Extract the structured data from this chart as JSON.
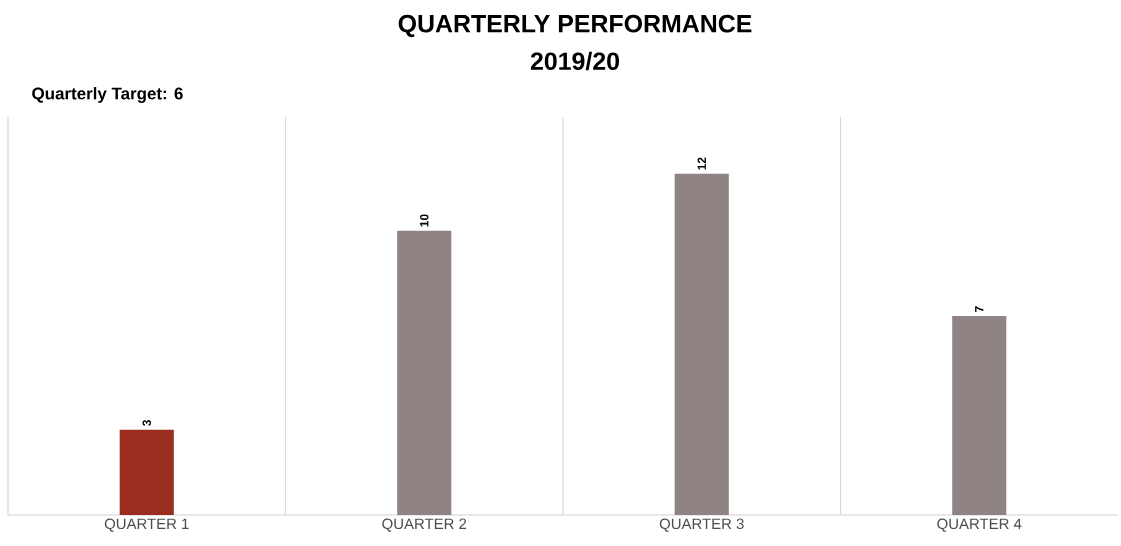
{
  "chart_data": {
    "type": "bar",
    "title": "QUARTERLY PERFORMANCE",
    "subtitle": "2019/20",
    "annotations": [
      "Quarterly Target: 6"
    ],
    "categories": [
      "QUARTER 1",
      "QUARTER 2",
      "QUARTER 3",
      "QUARTER 4"
    ],
    "values": [
      3,
      10,
      12,
      7
    ],
    "colors": [
      "#9b2d20",
      "#8f8483",
      "#8f8483",
      "#8f8483"
    ],
    "ylim": [
      0,
      14
    ],
    "data_labels": true,
    "grid": "x"
  }
}
